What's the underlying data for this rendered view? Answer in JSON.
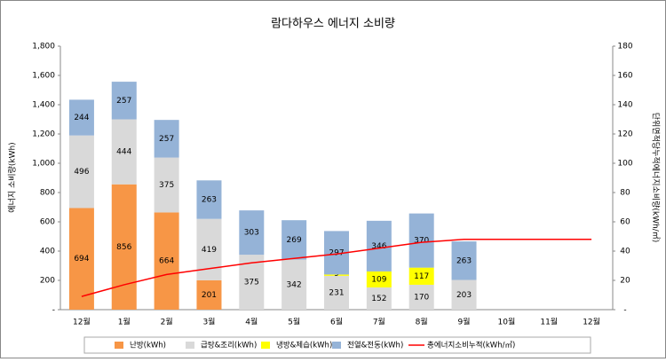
{
  "chart_data": {
    "type": "bar",
    "title": "람다하우스 에너지 소비량",
    "ylabel": "에너지 소비량(kWh)",
    "y2label": "단위면적당누적에너지소비량(kWh/㎡)",
    "categories": [
      "12월",
      "1월",
      "2월",
      "3월",
      "4월",
      "5월",
      "6월",
      "7월",
      "8월",
      "9월",
      "10월",
      "11월",
      "12월"
    ],
    "series": [
      {
        "name": "난방(kWh)",
        "color": "#f79646",
        "values": [
          694,
          856,
          664,
          201,
          null,
          null,
          null,
          null,
          null,
          null,
          null,
          null,
          null
        ]
      },
      {
        "name": "급탕&조리(kWh)",
        "color": "#d9d9d9",
        "values": [
          496,
          444,
          375,
          419,
          375,
          342,
          231,
          152,
          170,
          203,
          null,
          null,
          null
        ]
      },
      {
        "name": "냉방&제습(kWh)",
        "color": "#ffff00",
        "values": [
          null,
          null,
          null,
          null,
          null,
          null,
          9,
          109,
          117,
          null,
          null,
          null,
          null
        ]
      },
      {
        "name": "전열&전동(kWh)",
        "color": "#95b3d7",
        "values": [
          244,
          257,
          257,
          263,
          303,
          269,
          297,
          346,
          370,
          263,
          null,
          null,
          null
        ]
      },
      {
        "name": "총에너지소비누적(kWh/㎡)",
        "color": "#ff0000",
        "type": "line",
        "axis": "y2",
        "values": [
          9,
          17,
          24,
          28,
          32,
          35,
          38,
          42,
          46,
          48,
          48,
          48,
          48
        ]
      }
    ],
    "ylim": [
      0,
      1800
    ],
    "yticks": [
      {
        "value": 0,
        "label": "-"
      },
      200,
      400,
      600,
      800,
      {
        "value": 1000,
        "label": "1,000"
      },
      {
        "value": 1200,
        "label": "1,200"
      },
      {
        "value": 1400,
        "label": "1,400"
      },
      {
        "value": 1600,
        "label": "1,600"
      },
      {
        "value": 1800,
        "label": "1,800"
      }
    ],
    "y2lim": [
      0,
      180
    ],
    "y2ticks": [
      {
        "value": 0,
        "label": "-"
      },
      20,
      40,
      60,
      80,
      100,
      120,
      140,
      160,
      180
    ],
    "legend": "bottom"
  }
}
